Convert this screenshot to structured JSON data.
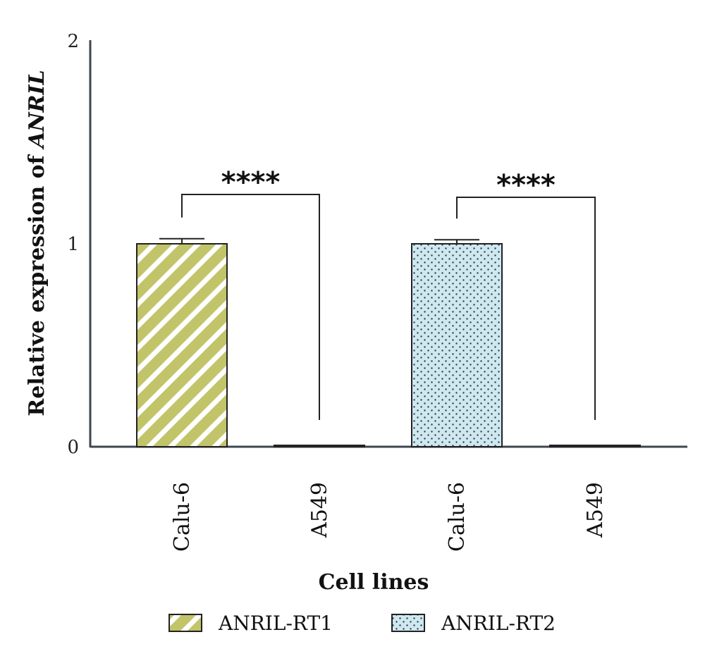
{
  "chart_data": {
    "type": "bar",
    "xlabel": "Cell lines",
    "ylabel_prefix": "Relative expression of ",
    "ylabel_gene": "ANRIL",
    "ylim": [
      0,
      2
    ],
    "yticks": [
      0,
      1,
      2
    ],
    "yticklabels": [
      "0",
      "1",
      "2"
    ],
    "bars": [
      {
        "category": "Calu-6",
        "series": "ANRIL-RT1",
        "value": 1.0,
        "error": 0.025
      },
      {
        "category": "A549",
        "series": "ANRIL-RT1",
        "value": 0.004,
        "error": 0
      },
      {
        "category": "Calu-6",
        "series": "ANRIL-RT2",
        "value": 1.0,
        "error": 0.02
      },
      {
        "category": "A549",
        "series": "ANRIL-RT2",
        "value": 0.004,
        "error": 0
      }
    ],
    "significance": [
      {
        "from": 0,
        "to": 1,
        "label": "****"
      },
      {
        "from": 2,
        "to": 3,
        "label": "****"
      }
    ],
    "series": [
      {
        "name": "ANRIL-RT1",
        "color": "#c2c46a",
        "pattern": "diagonal-stripes"
      },
      {
        "name": "ANRIL-RT2",
        "color": "#c9e6ee",
        "pattern": "dots"
      }
    ],
    "legend_position": "bottom",
    "grid": false
  }
}
